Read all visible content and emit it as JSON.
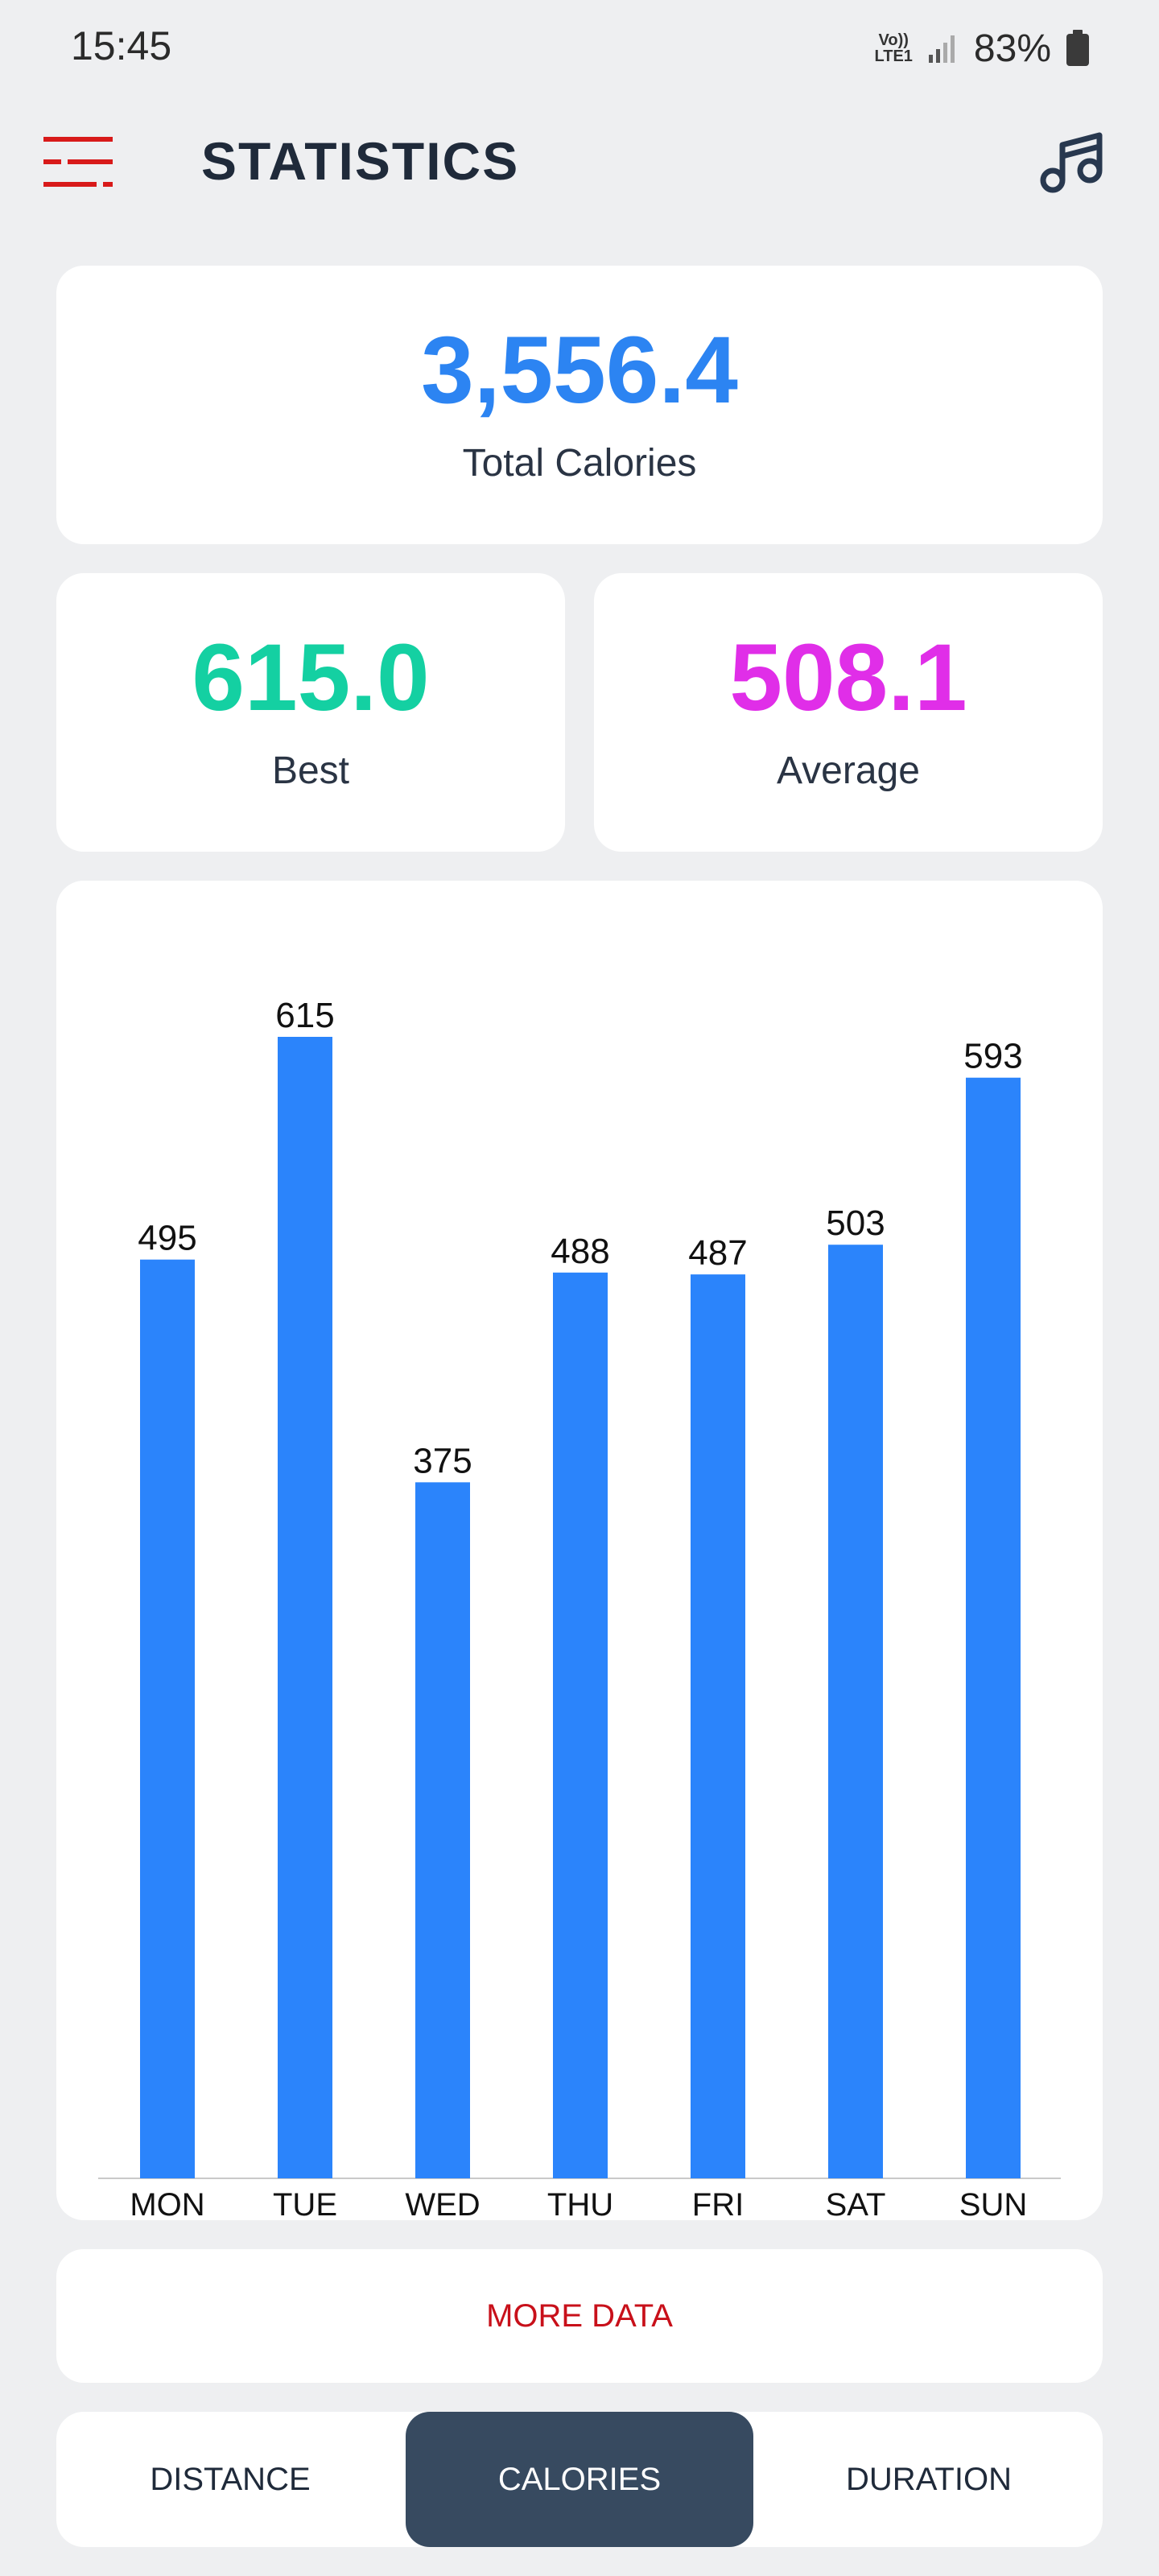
{
  "status_bar": {
    "time": "15:45",
    "network_line1": "Vo))",
    "network_line2": "LTE1",
    "battery": "83%",
    "icons": [
      "signal-icon",
      "battery-icon"
    ]
  },
  "header": {
    "title": "STATISTICS",
    "menu_icon": "menu-icon",
    "music_icon": "music-icon",
    "accent_color": "#c8101a"
  },
  "summary": {
    "total_value": "3,556.4",
    "total_label": "Total Calories",
    "best_value": "615.0",
    "best_label": "Best",
    "average_value": "508.1",
    "average_label": "Average",
    "total_color": "#2c84f2",
    "best_color": "#14d0a2",
    "average_color": "#e02ee8"
  },
  "chart_data": {
    "type": "bar",
    "categories": [
      "MON",
      "TUE",
      "WED",
      "THU",
      "FRI",
      "SAT",
      "SUN"
    ],
    "values": [
      495,
      615,
      375,
      488,
      487,
      503,
      593
    ],
    "data_labels": [
      "495",
      "615",
      "375",
      "488",
      "487",
      "503",
      "593"
    ],
    "ylim": [
      0,
      615
    ],
    "bar_color": "#2b84fb",
    "grid": false,
    "legend": false
  },
  "more_button": {
    "label": "MORE DATA"
  },
  "tabs": [
    {
      "label": "DISTANCE",
      "selected": false
    },
    {
      "label": "CALORIES",
      "selected": true
    },
    {
      "label": "DURATION",
      "selected": false
    }
  ]
}
